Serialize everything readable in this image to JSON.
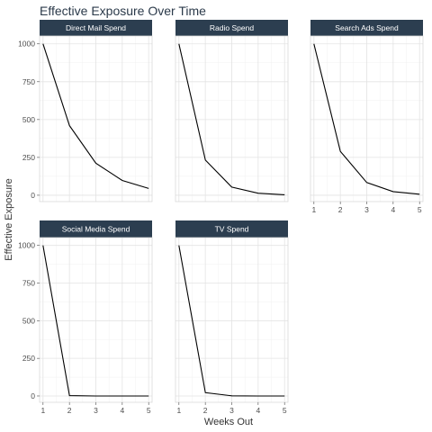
{
  "chart_data": {
    "type": "line",
    "title": "Effective Exposure Over Time",
    "xlabel": "Weeks Out",
    "ylabel": "Effective Exposure",
    "x": [
      1,
      2,
      3,
      4,
      5
    ],
    "xlim": [
      0.87,
      5.13
    ],
    "ylim": [
      -42,
      1052
    ],
    "x_ticks": [
      1,
      2,
      3,
      4,
      5
    ],
    "y_ticks": [
      0,
      250,
      500,
      750,
      1000
    ],
    "grid": true,
    "strip_color": "#2c3e50",
    "line_color": "#000000",
    "panels": [
      {
        "name": "Direct Mail Spend",
        "values": [
          1000,
          460,
          212,
          98,
          45
        ]
      },
      {
        "name": "Radio Spend",
        "values": [
          1000,
          232,
          54,
          13,
          3
        ]
      },
      {
        "name": "Search Ads Spend",
        "values": [
          1000,
          290,
          84,
          24,
          7
        ]
      },
      {
        "name": "Social Media Spend",
        "values": [
          1000,
          2,
          0,
          0,
          0
        ]
      },
      {
        "name": "TV Spend",
        "values": [
          1000,
          22,
          1,
          0,
          0
        ]
      }
    ]
  }
}
